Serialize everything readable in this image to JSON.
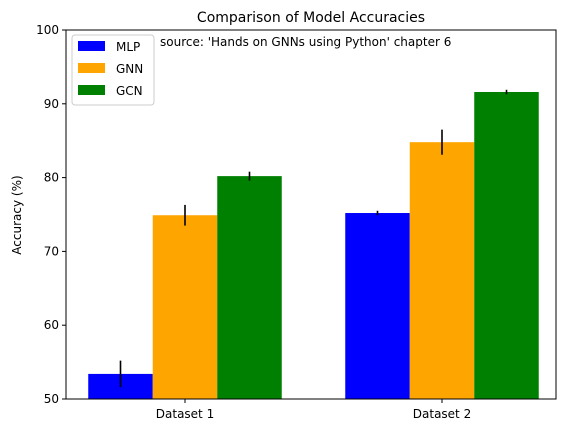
{
  "chart_data": {
    "type": "bar",
    "title": "Comparison of Model Accuracies",
    "annotation": "source: 'Hands on GNNs using Python' chapter 6",
    "xlabel": "",
    "ylabel": "Accuracy (%)",
    "categories": [
      "Dataset 1",
      "Dataset 2"
    ],
    "ylim": [
      50,
      100
    ],
    "yticks": [
      50,
      60,
      70,
      80,
      90,
      100
    ],
    "legend_position": "top-left",
    "grid": false,
    "series": [
      {
        "name": "MLP",
        "color": "#0000ff",
        "values": [
          53.4,
          75.2
        ],
        "errors": [
          1.8,
          0.3
        ]
      },
      {
        "name": "GNN",
        "color": "#ffa500",
        "values": [
          74.9,
          84.8
        ],
        "errors": [
          1.4,
          1.7
        ]
      },
      {
        "name": "GCN",
        "color": "#008000",
        "values": [
          80.2,
          91.6
        ],
        "errors": [
          0.6,
          0.3
        ]
      }
    ]
  }
}
